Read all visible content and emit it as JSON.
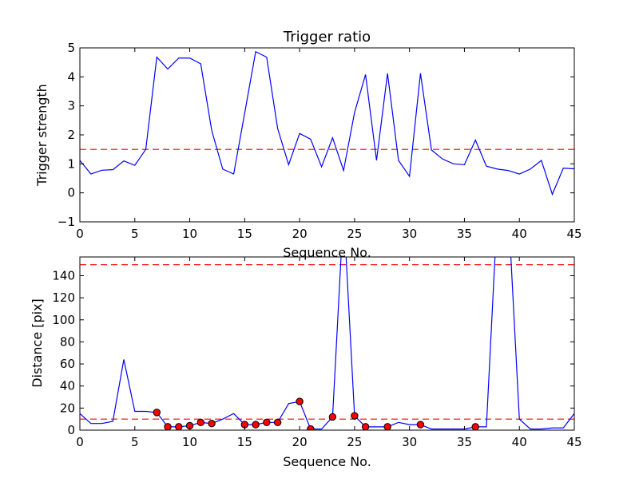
{
  "chart_data": [
    {
      "type": "line",
      "title": "Trigger ratio",
      "xlabel": "Sequence No.",
      "ylabel": "Trigger strength",
      "xlim": [
        0,
        45
      ],
      "ylim": [
        -1,
        5
      ],
      "xticks": [
        "0",
        "5",
        "10",
        "15",
        "20",
        "25",
        "30",
        "35",
        "40",
        "45"
      ],
      "yticks": [
        "−1",
        "0",
        "1",
        "2",
        "3",
        "4",
        "5"
      ],
      "grid": false,
      "series": [
        {
          "color": "#0000ff",
          "x": [
            0,
            1,
            2,
            3,
            4,
            5,
            6,
            7,
            8,
            9,
            10,
            11,
            12,
            13,
            14,
            15,
            16,
            17,
            18,
            19,
            20,
            21,
            22,
            23,
            24,
            25,
            26,
            27,
            28,
            29,
            30,
            31,
            32,
            33,
            34,
            35,
            36,
            37,
            38,
            39,
            40,
            41,
            42,
            43,
            44,
            45
          ],
          "y": [
            1.12,
            0.65,
            0.78,
            0.8,
            1.1,
            0.95,
            1.5,
            4.68,
            4.27,
            4.65,
            4.65,
            4.45,
            2.15,
            0.82,
            0.65,
            2.75,
            4.87,
            4.68,
            2.22,
            0.97,
            2.05,
            1.85,
            0.9,
            1.9,
            0.77,
            2.77,
            4.08,
            1.12,
            4.12,
            1.12,
            0.57,
            4.12,
            1.48,
            1.17,
            1.0,
            0.97,
            1.82,
            0.92,
            0.82,
            0.77,
            0.65,
            0.82,
            1.12,
            -0.05,
            0.85,
            0.83
          ]
        }
      ],
      "threshold": {
        "y": 1.5,
        "color": "#ff0000",
        "style": "dashed"
      }
    },
    {
      "type": "line",
      "title": "",
      "xlabel": "Sequence No.",
      "ylabel": "Distance [pix]",
      "xlim": [
        0,
        45
      ],
      "ylim": [
        0,
        157
      ],
      "xticks": [
        "0",
        "5",
        "10",
        "15",
        "20",
        "25",
        "30",
        "35",
        "40",
        "45"
      ],
      "yticks": [
        "0",
        "20",
        "40",
        "60",
        "80",
        "100",
        "120",
        "140"
      ],
      "ytick_values": [
        0,
        20,
        40,
        60,
        80,
        100,
        120,
        140
      ],
      "grid": false,
      "series": [
        {
          "color": "#0000ff",
          "x": [
            0,
            1,
            2,
            3,
            4,
            5,
            6,
            7,
            8,
            9,
            10,
            11,
            12,
            13,
            14,
            15,
            16,
            17,
            18,
            19,
            20,
            21,
            22,
            23,
            24,
            25,
            26,
            27,
            28,
            29,
            30,
            31,
            32,
            33,
            34,
            35,
            36,
            37,
            38,
            39,
            40,
            41,
            42,
            43,
            44,
            45
          ],
          "y": [
            15,
            6,
            6,
            8,
            64,
            17,
            17,
            16,
            3,
            3,
            4,
            7,
            6,
            10,
            15,
            5,
            5,
            7,
            7,
            24,
            26,
            1,
            1,
            12,
            200,
            13,
            3,
            3,
            3,
            7,
            5,
            5,
            1,
            1,
            1,
            1,
            3,
            3,
            200,
            200,
            10,
            1,
            1,
            2,
            2,
            15
          ]
        }
      ],
      "markers": {
        "color": "#ff0000",
        "x": [
          7,
          8,
          9,
          10,
          11,
          12,
          15,
          16,
          17,
          18,
          20,
          21,
          23,
          25,
          26,
          28,
          31,
          36
        ],
        "y": [
          16,
          3,
          3,
          4,
          7,
          6,
          5,
          5,
          7,
          7,
          26,
          1,
          12,
          13,
          3,
          3,
          5,
          3
        ]
      },
      "thresholds": [
        {
          "y": 10,
          "color": "#ff0000",
          "style": "dashed"
        },
        {
          "y": 150,
          "color": "#ff0000",
          "style": "dashed"
        }
      ]
    }
  ]
}
